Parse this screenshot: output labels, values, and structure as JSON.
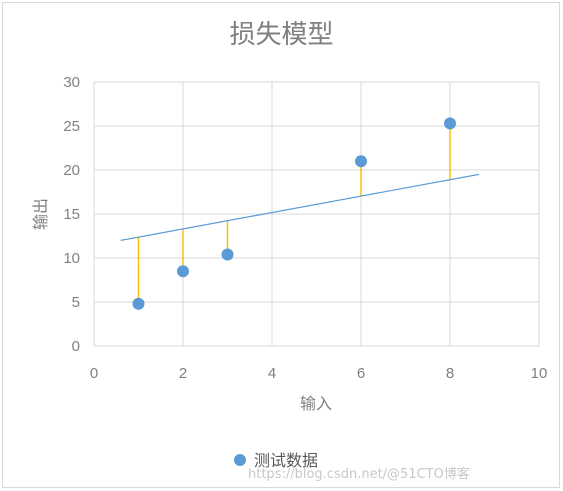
{
  "chart_data": {
    "type": "scatter",
    "title": "损失模型",
    "xlabel": "输入",
    "ylabel": "输出",
    "xlim": [
      0,
      10
    ],
    "ylim": [
      0,
      30
    ],
    "xticks": [
      0,
      2,
      4,
      6,
      8,
      10
    ],
    "yticks": [
      0,
      5,
      10,
      15,
      20,
      25,
      30
    ],
    "grid": true,
    "legend_position": "bottom",
    "series": [
      {
        "name": "测试数据",
        "color": "#5b9bd5",
        "points": [
          {
            "x": 1,
            "y": 4.8
          },
          {
            "x": 2,
            "y": 8.5
          },
          {
            "x": 3,
            "y": 10.4
          },
          {
            "x": 6,
            "y": 21.0
          },
          {
            "x": 8,
            "y": 25.3
          }
        ]
      }
    ],
    "fit_line": {
      "color": "#5b9bd5",
      "x": [
        0.6,
        8.65
      ],
      "y": [
        12.0,
        19.5
      ]
    },
    "residual_color": "#ffc000"
  },
  "watermark": "https://blog.csdn.net/@51CTO博客"
}
